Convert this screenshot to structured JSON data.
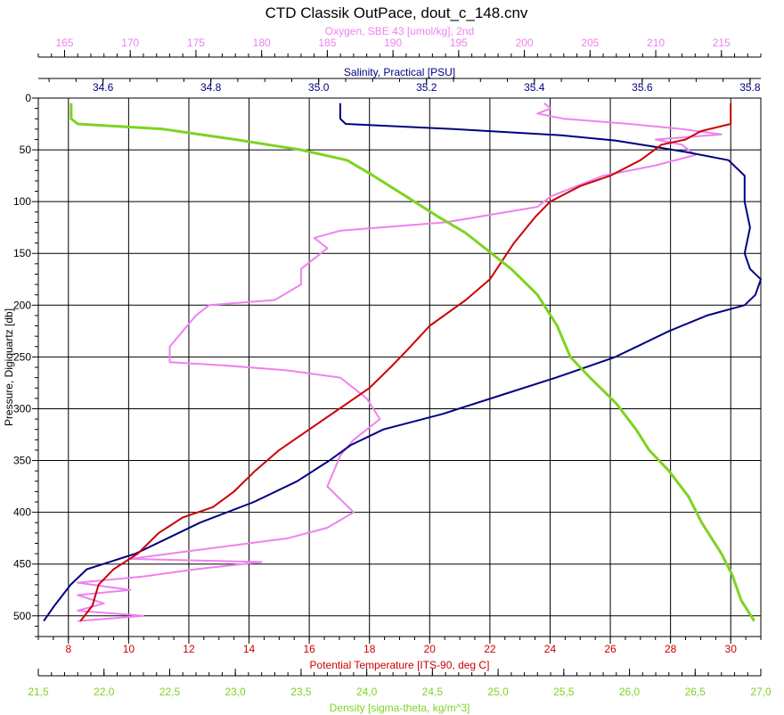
{
  "title": "CTD Classik OutPace, dout_c_148.cnv",
  "colors": {
    "oxygen": "#ee82ee",
    "salinity": "#000080",
    "temperature": "#cc0000",
    "density": "#7ed321",
    "axis": "#000000",
    "background": "#ffffff"
  },
  "chart_data": {
    "type": "line",
    "title": "CTD Classik OutPace, dout_c_148.cnv",
    "y_axis": {
      "label": "Pressure, Digiquartz [db]",
      "range": [
        0,
        520
      ],
      "ticks": [
        "0",
        "50",
        "100",
        "150",
        "200",
        "250",
        "300",
        "350",
        "400",
        "450",
        "500"
      ],
      "inverted": true
    },
    "axes": {
      "oxygen": {
        "label": "Oxygen, SBE 43 [umol/kg], 2nd",
        "position": "top",
        "range": [
          163,
          218
        ],
        "ticks": [
          "165",
          "170",
          "175",
          "180",
          "185",
          "190",
          "195",
          "200",
          "205",
          "210",
          "215"
        ]
      },
      "salinity": {
        "label": "Salinity, Practical [PSU]",
        "position": "top",
        "range": [
          34.48,
          35.82
        ],
        "ticks": [
          "34.6",
          "34.8",
          "35.0",
          "35.2",
          "35.4",
          "35.6",
          "35.8"
        ]
      },
      "temperature": {
        "label": "Potential Temperature [ITS-90, deg C]",
        "position": "bottom",
        "range": [
          7,
          31
        ],
        "ticks": [
          "8",
          "10",
          "12",
          "14",
          "16",
          "18",
          "20",
          "22",
          "24",
          "26",
          "28",
          "30"
        ]
      },
      "density": {
        "label": "Density [sigma-theta, kg/m^3]",
        "position": "bottom",
        "range": [
          21.5,
          27.0
        ],
        "ticks": [
          "21,5",
          "22,0",
          "22,5",
          "23,0",
          "23,5",
          "24,0",
          "24,5",
          "25,0",
          "25,5",
          "26,0",
          "26,5",
          "27,0"
        ]
      }
    },
    "grid": true,
    "series": [
      {
        "name": "Oxygen, SBE 43 [umol/kg], 2nd",
        "axis": "oxygen",
        "points": [
          [
            201.5,
            5
          ],
          [
            202,
            10
          ],
          [
            201,
            15
          ],
          [
            203,
            20
          ],
          [
            208,
            25
          ],
          [
            212,
            30
          ],
          [
            215,
            35
          ],
          [
            210,
            40
          ],
          [
            212,
            45
          ],
          [
            213,
            55
          ],
          [
            210,
            65
          ],
          [
            206,
            75
          ],
          [
            204,
            85
          ],
          [
            202,
            95
          ],
          [
            201,
            105
          ],
          [
            194,
            120
          ],
          [
            186,
            128
          ],
          [
            184,
            135
          ],
          [
            185,
            145
          ],
          [
            183,
            165
          ],
          [
            183,
            180
          ],
          [
            181,
            195
          ],
          [
            176,
            200
          ],
          [
            175,
            210
          ],
          [
            174,
            225
          ],
          [
            173,
            240
          ],
          [
            173,
            255
          ],
          [
            177,
            258
          ],
          [
            182,
            263
          ],
          [
            186,
            270
          ],
          [
            188,
            290
          ],
          [
            189,
            310
          ],
          [
            187,
            330
          ],
          [
            186,
            345
          ],
          [
            185,
            375
          ],
          [
            187,
            400
          ],
          [
            185,
            415
          ],
          [
            182,
            425
          ],
          [
            176,
            435
          ],
          [
            170,
            445
          ],
          [
            180,
            448
          ],
          [
            175,
            455
          ],
          [
            171,
            462
          ],
          [
            166,
            468
          ],
          [
            170,
            475
          ],
          [
            166,
            480
          ],
          [
            168,
            488
          ],
          [
            166,
            495
          ],
          [
            171,
            500
          ],
          [
            168,
            503
          ],
          [
            166,
            505
          ]
        ]
      },
      {
        "name": "Salinity, Practical [PSU]",
        "axis": "salinity",
        "points": [
          [
            35.04,
            5
          ],
          [
            35.04,
            20
          ],
          [
            35.05,
            25
          ],
          [
            35.25,
            30
          ],
          [
            35.45,
            36
          ],
          [
            35.55,
            41
          ],
          [
            35.61,
            46
          ],
          [
            35.68,
            52
          ],
          [
            35.76,
            60
          ],
          [
            35.79,
            75
          ],
          [
            35.79,
            100
          ],
          [
            35.8,
            125
          ],
          [
            35.79,
            150
          ],
          [
            35.8,
            165
          ],
          [
            35.82,
            175
          ],
          [
            35.81,
            190
          ],
          [
            35.79,
            200
          ],
          [
            35.72,
            210
          ],
          [
            35.65,
            225
          ],
          [
            35.59,
            240
          ],
          [
            35.55,
            250
          ],
          [
            35.44,
            270
          ],
          [
            35.35,
            285
          ],
          [
            35.23,
            305
          ],
          [
            35.12,
            320
          ],
          [
            35.06,
            335
          ],
          [
            35.02,
            350
          ],
          [
            34.96,
            370
          ],
          [
            34.88,
            390
          ],
          [
            34.78,
            410
          ],
          [
            34.72,
            425
          ],
          [
            34.66,
            440
          ],
          [
            34.57,
            455
          ],
          [
            34.54,
            470
          ],
          [
            34.51,
            490
          ],
          [
            34.49,
            505
          ]
        ]
      },
      {
        "name": "Potential Temperature [ITS-90, deg C]",
        "axis": "temperature",
        "points": [
          [
            30,
            5
          ],
          [
            30,
            25
          ],
          [
            29,
            32
          ],
          [
            28.5,
            40
          ],
          [
            27.7,
            45
          ],
          [
            27,
            60
          ],
          [
            26,
            75
          ],
          [
            25,
            85
          ],
          [
            24,
            100
          ],
          [
            23.5,
            115
          ],
          [
            22.8,
            140
          ],
          [
            22,
            175
          ],
          [
            21.2,
            195
          ],
          [
            20,
            220
          ],
          [
            19.2,
            245
          ],
          [
            18.7,
            260
          ],
          [
            18,
            280
          ],
          [
            17,
            300
          ],
          [
            16,
            320
          ],
          [
            15,
            340
          ],
          [
            14.2,
            360
          ],
          [
            13.5,
            380
          ],
          [
            12.8,
            395
          ],
          [
            11.8,
            405
          ],
          [
            11,
            420
          ],
          [
            10.3,
            440
          ],
          [
            9.5,
            455
          ],
          [
            9,
            470
          ],
          [
            8.8,
            490
          ],
          [
            8.4,
            505
          ]
        ]
      },
      {
        "name": "Density [sigma-theta, kg/m^3]",
        "axis": "density",
        "points": [
          [
            21.75,
            5
          ],
          [
            21.75,
            20
          ],
          [
            21.8,
            25
          ],
          [
            22.45,
            30
          ],
          [
            23.0,
            40
          ],
          [
            23.25,
            45
          ],
          [
            23.5,
            50
          ],
          [
            23.85,
            60
          ],
          [
            24.05,
            75
          ],
          [
            24.3,
            95
          ],
          [
            24.55,
            115
          ],
          [
            24.75,
            130
          ],
          [
            24.95,
            150
          ],
          [
            25.1,
            165
          ],
          [
            25.3,
            190
          ],
          [
            25.45,
            220
          ],
          [
            25.55,
            250
          ],
          [
            25.7,
            270
          ],
          [
            25.9,
            295
          ],
          [
            26.05,
            320
          ],
          [
            26.15,
            340
          ],
          [
            26.3,
            360
          ],
          [
            26.45,
            385
          ],
          [
            26.55,
            410
          ],
          [
            26.7,
            440
          ],
          [
            26.78,
            460
          ],
          [
            26.85,
            485
          ],
          [
            26.95,
            505
          ]
        ]
      }
    ]
  }
}
